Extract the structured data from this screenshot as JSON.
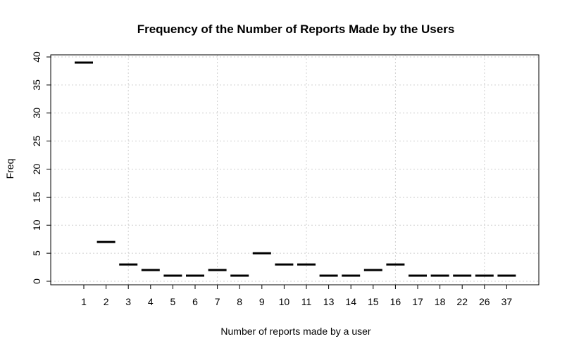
{
  "chart_data": {
    "type": "bar",
    "title": "Frequency of the Number of Reports Made by the Users",
    "xlabel": "Number of reports made by a user",
    "ylabel": "Freq",
    "categories": [
      "1",
      "2",
      "3",
      "4",
      "5",
      "6",
      "7",
      "8",
      "9",
      "10",
      "11",
      "13",
      "14",
      "15",
      "16",
      "17",
      "18",
      "22",
      "26",
      "37"
    ],
    "values": [
      39,
      7,
      3,
      2,
      1,
      1,
      2,
      1,
      5,
      3,
      3,
      1,
      1,
      2,
      3,
      1,
      1,
      1,
      1,
      1
    ],
    "ylim": [
      0,
      40
    ],
    "yticks": [
      0,
      5,
      10,
      15,
      20,
      25,
      30,
      35,
      40
    ],
    "grid": true,
    "style": "horizontal tick marks at each frequency value"
  }
}
